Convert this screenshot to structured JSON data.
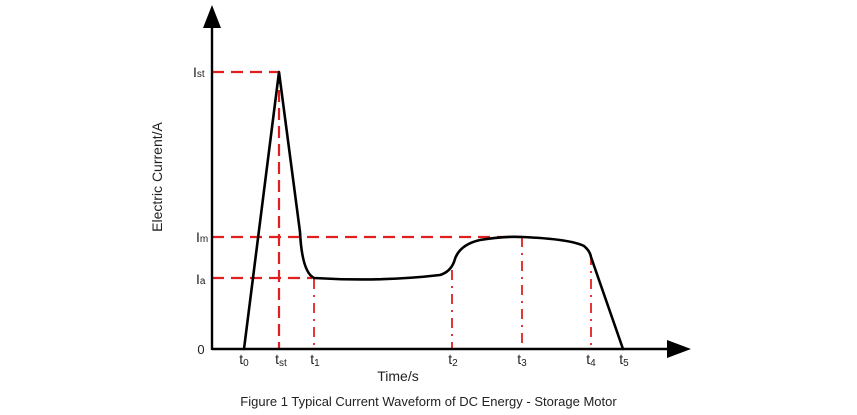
{
  "figure": {
    "caption": "Figure 1 Typical Current Waveform of DC Energy - Storage Motor",
    "x_axis_label": "Time/s",
    "y_axis_label": "Electric Current/A",
    "origin_label": "0",
    "y_ticks": [
      {
        "main": "I",
        "sub": "st"
      },
      {
        "main": "I",
        "sub": "m"
      },
      {
        "main": "I",
        "sub": "a"
      }
    ],
    "x_ticks": [
      {
        "main": "t",
        "sub": "0"
      },
      {
        "main": "t",
        "sub": "st"
      },
      {
        "main": "t",
        "sub": "1"
      },
      {
        "main": "t",
        "sub": "2"
      },
      {
        "main": "t",
        "sub": "3"
      },
      {
        "main": "t",
        "sub": "4"
      },
      {
        "main": "t",
        "sub": "5"
      }
    ],
    "colors": {
      "axis": "#000000",
      "curve": "#000000",
      "guide": "#e02020",
      "text": "#222222"
    }
  }
}
